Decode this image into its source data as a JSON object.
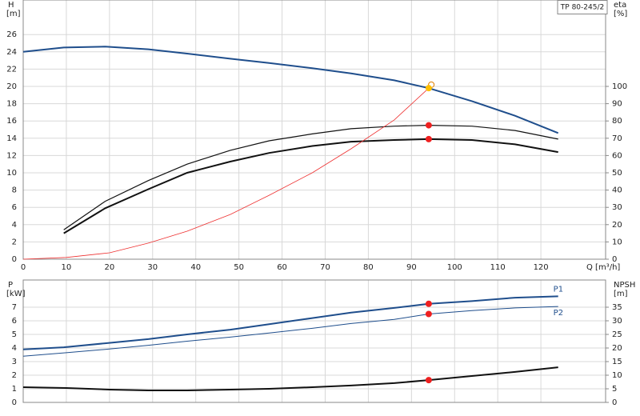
{
  "chart_data": [
    {
      "type": "line",
      "title": "TP 80-245/2",
      "ylabel": "H",
      "yunit": "[m]",
      "y2label": "eta",
      "y2unit": "[%]",
      "xlabel": "Q [m³/h]",
      "xlim": [
        0,
        135
      ],
      "xticks": [
        0,
        10,
        20,
        30,
        40,
        50,
        60,
        70,
        80,
        90,
        100,
        110,
        120
      ],
      "ylim": [
        0,
        30
      ],
      "yticks": [
        0,
        2,
        4,
        6,
        8,
        10,
        12,
        14,
        16,
        18,
        20,
        22,
        24,
        26
      ],
      "y2lim": [
        0,
        150
      ],
      "y2ticks": [
        0,
        10,
        20,
        30,
        40,
        50,
        60,
        70,
        80,
        90,
        100
      ],
      "grid": true,
      "series": [
        {
          "color": "#1f4e8c",
          "width": 2,
          "x": [
            0,
            9.4,
            19,
            29,
            38,
            48,
            57,
            67,
            76,
            86,
            94,
            104,
            114,
            124
          ],
          "values": [
            24.0,
            24.5,
            24.6,
            24.3,
            23.8,
            23.2,
            22.7,
            22.1,
            21.5,
            20.7,
            19.8,
            18.3,
            16.6,
            14.6
          ]
        },
        {
          "color": "#111111",
          "width": 1.2,
          "x": [
            9.4,
            19,
            29,
            38,
            48,
            57,
            67,
            76,
            86,
            94,
            104,
            114,
            124
          ],
          "values": [
            3.4,
            6.7,
            9.1,
            11.0,
            12.6,
            13.7,
            14.5,
            15.1,
            15.4,
            15.5,
            15.4,
            14.9,
            13.9
          ]
        },
        {
          "color": "#111111",
          "width": 2,
          "x": [
            9.4,
            19,
            29,
            38,
            48,
            57,
            67,
            76,
            86,
            94,
            104,
            114,
            124
          ],
          "values": [
            3.0,
            5.9,
            8.1,
            10.0,
            11.3,
            12.3,
            13.1,
            13.6,
            13.8,
            13.9,
            13.8,
            13.3,
            12.4
          ]
        },
        {
          "color": "#ee3030",
          "width": 0.8,
          "axis": "y2",
          "x": [
            0,
            10,
            20,
            29,
            38,
            48,
            57,
            67,
            76,
            86,
            94
          ],
          "values": [
            0,
            1,
            3.7,
            9.3,
            16.2,
            25.9,
            37,
            50,
            63.9,
            80.6,
            99
          ]
        }
      ],
      "markers": [
        {
          "x": 94,
          "y": 15.5,
          "color": "#ee2020"
        },
        {
          "x": 94,
          "y": 13.9,
          "color": "#ee2020"
        },
        {
          "x": 94.6,
          "y": 101,
          "color": "#ffffff",
          "axis": "y2"
        },
        {
          "x": 94,
          "y": 19.8,
          "color": "#ffc000"
        }
      ]
    },
    {
      "type": "line",
      "ylabel": "P",
      "yunit": "[kW]",
      "y2label": "NPSH",
      "y2unit": "[m]",
      "xlim": [
        0,
        135
      ],
      "xticks": [
        0,
        10,
        20,
        30,
        40,
        50,
        60,
        70,
        80,
        90,
        100,
        110,
        120
      ],
      "xtick_labels": false,
      "ylim": [
        0,
        9
      ],
      "yticks": [
        0,
        1,
        2,
        3,
        4,
        5,
        6,
        7
      ],
      "y2lim": [
        0,
        45
      ],
      "y2ticks": [
        0,
        5,
        10,
        15,
        20,
        25,
        30,
        35
      ],
      "grid": true,
      "series": [
        {
          "name": "P1",
          "color": "#1f4e8c",
          "width": 2,
          "x": [
            0,
            9.4,
            19,
            29,
            38,
            48,
            57,
            67,
            76,
            86,
            94,
            104,
            114,
            124
          ],
          "values": [
            3.9,
            4.05,
            4.35,
            4.65,
            5.0,
            5.35,
            5.75,
            6.2,
            6.6,
            6.95,
            7.25,
            7.45,
            7.7,
            7.8
          ]
        },
        {
          "name": "P2",
          "color": "#1f4e8c",
          "width": 1,
          "x": [
            0,
            10,
            19,
            29,
            38,
            48,
            57,
            67,
            76,
            86,
            94,
            104,
            114,
            124
          ],
          "values": [
            3.4,
            3.65,
            3.9,
            4.2,
            4.5,
            4.8,
            5.1,
            5.45,
            5.8,
            6.1,
            6.5,
            6.75,
            6.95,
            7.05
          ]
        },
        {
          "color": "#111111",
          "width": 2,
          "axis": "y2",
          "x": [
            0,
            10,
            20,
            29,
            38,
            48,
            57,
            67,
            76,
            86,
            94,
            104,
            114,
            124
          ],
          "values": [
            5.6,
            5.3,
            4.7,
            4.4,
            4.4,
            4.7,
            5.0,
            5.6,
            6.2,
            7.1,
            8.2,
            9.7,
            11.2,
            12.9
          ]
        }
      ],
      "markers": [
        {
          "x": 94,
          "y": 7.25,
          "color": "#ee2020"
        },
        {
          "x": 94,
          "y": 6.5,
          "color": "#ee2020"
        },
        {
          "x": 94,
          "y": 8.2,
          "color": "#ee2020",
          "axis": "y2"
        }
      ]
    }
  ]
}
